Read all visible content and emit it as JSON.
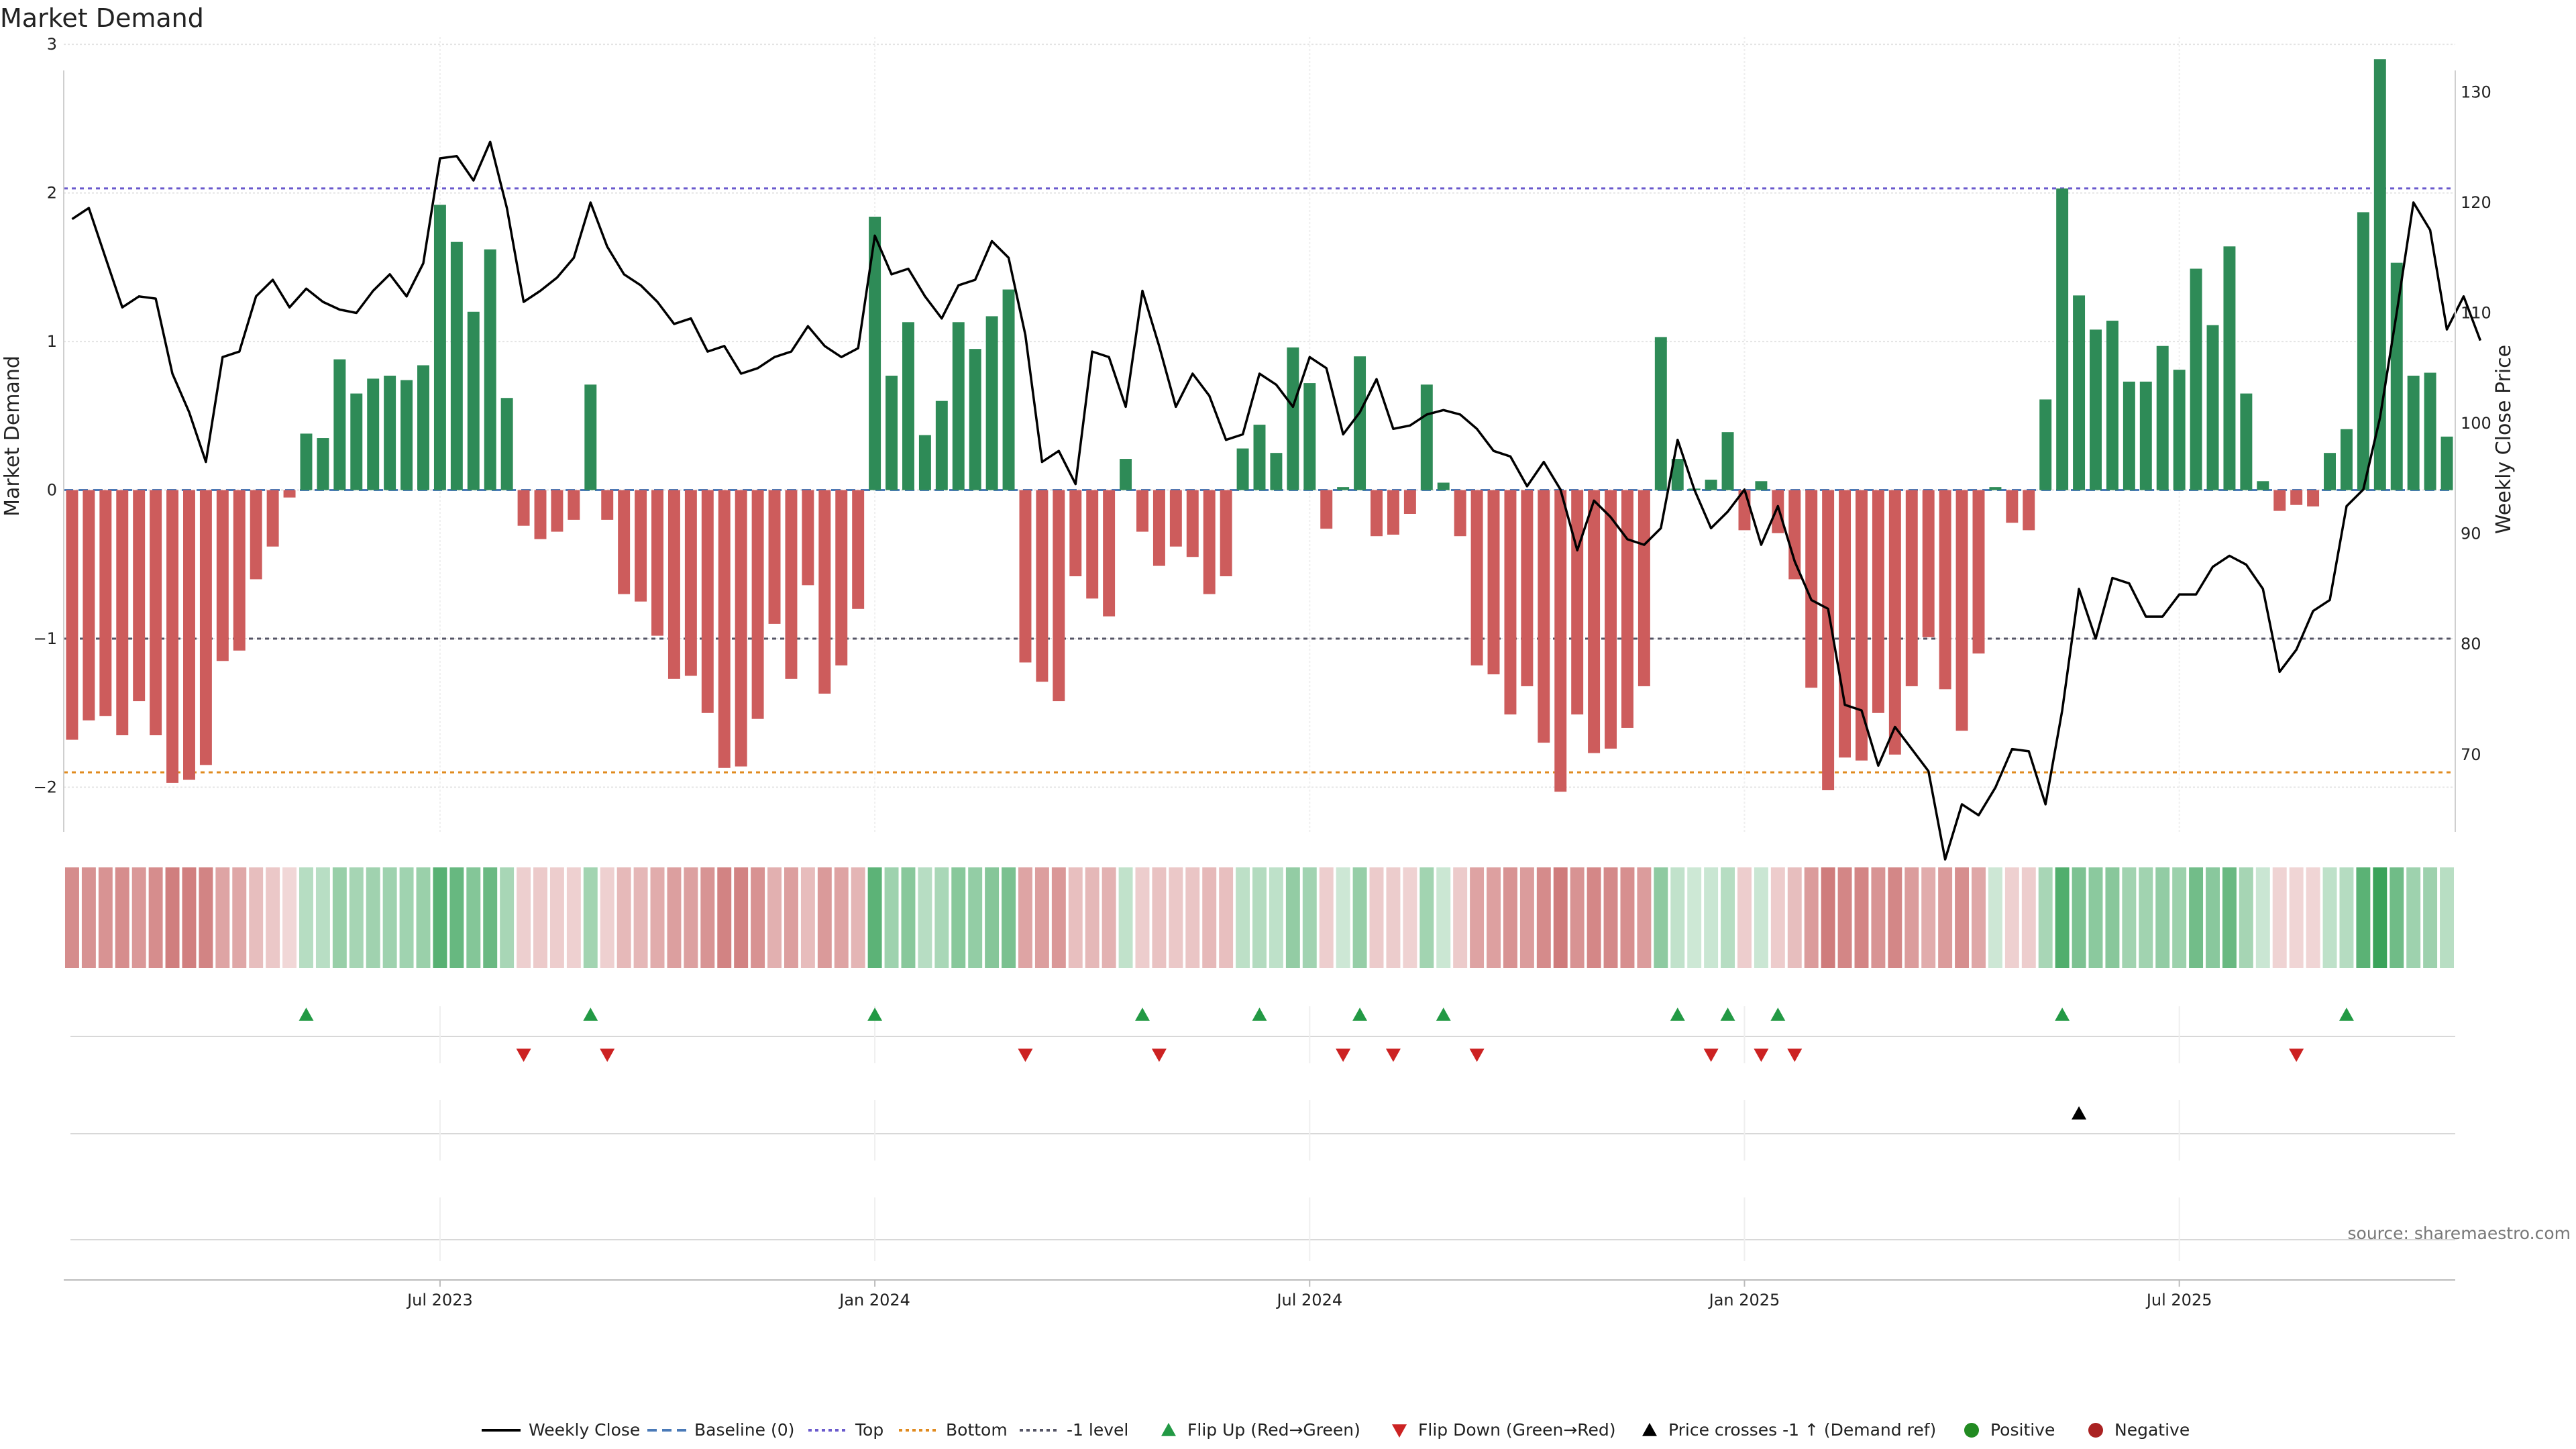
{
  "chart_data": {
    "type": "bar",
    "title": "Market Demand",
    "ylabel": "Market Demand",
    "y2label": "Weekly Close Price",
    "source": "source: sharemaestro.com",
    "ylim": [
      -2.3,
      3.05
    ],
    "y2lim": [
      63.0,
      135.0
    ],
    "y_ticks": [
      -2,
      -1,
      0,
      1,
      2,
      3
    ],
    "y_tick_labels": [
      "−2",
      "−1",
      "0",
      "1",
      "2",
      "3"
    ],
    "y2_ticks": [
      70,
      80,
      90,
      100,
      110,
      120,
      130
    ],
    "y2_tick_labels": [
      "70",
      "80",
      "90",
      "100",
      "110",
      "120",
      "130"
    ],
    "x_ticks": [
      22,
      48,
      74,
      100,
      126
    ],
    "x_tick_labels": [
      "Jul 2023",
      "Jan 2024",
      "Jul 2024",
      "Jan 2025",
      "Jul 2025"
    ],
    "reference_lines": {
      "top": 2.03,
      "bottom": -1.9,
      "minus_one": -1.0,
      "baseline": 0
    },
    "colors": {
      "positive": "#2e8b57",
      "negative": "#cd5c5c",
      "close": "#000000",
      "baseline": "#4a7ab8",
      "top": "#6a5acd",
      "bottom": "#e08a1e",
      "minus_one": "#555566",
      "flip_up": "#229944",
      "flip_down": "#cc2222",
      "cross": "#000000",
      "legend_positive": "#228b22",
      "legend_negative": "#aa2222"
    },
    "series": [
      {
        "name": "Market Demand",
        "values": [
          -1.68,
          -1.55,
          -1.52,
          -1.65,
          -1.42,
          -1.65,
          -1.97,
          -1.95,
          -1.85,
          -1.15,
          -1.08,
          -0.6,
          -0.38,
          -0.05,
          0.38,
          0.35,
          0.88,
          0.65,
          0.75,
          0.77,
          0.74,
          0.84,
          1.92,
          1.67,
          1.2,
          1.62,
          0.62,
          -0.24,
          -0.33,
          -0.28,
          -0.2,
          0.71,
          -0.2,
          -0.7,
          -0.75,
          -0.98,
          -1.27,
          -1.25,
          -1.5,
          -1.87,
          -1.86,
          -1.54,
          -0.9,
          -1.27,
          -0.64,
          -1.37,
          -1.18,
          -0.8,
          1.84,
          0.77,
          1.13,
          0.37,
          0.6,
          1.13,
          0.95,
          1.17,
          1.35,
          -1.16,
          -1.29,
          -1.42,
          -0.58,
          -0.73,
          -0.85,
          0.21,
          -0.28,
          -0.51,
          -0.38,
          -0.45,
          -0.7,
          -0.58,
          0.28,
          0.44,
          0.25,
          0.96,
          0.72,
          -0.26,
          0.02,
          0.9,
          -0.31,
          -0.3,
          -0.16,
          0.71,
          0.05,
          -0.31,
          -1.18,
          -1.24,
          -1.51,
          -1.32,
          -1.7,
          -2.03,
          -1.51,
          -1.77,
          -1.74,
          -1.6,
          -1.32,
          1.03,
          0.21,
          0.01,
          0.07,
          0.39,
          -0.27,
          0.06,
          -0.29,
          -0.6,
          -1.33,
          -2.02,
          -1.8,
          -1.82,
          -1.5,
          -1.78,
          -1.32,
          -0.99,
          -1.34,
          -1.62,
          -1.1,
          0.02,
          -0.22,
          -0.27,
          0.61,
          2.03,
          1.31,
          1.08,
          1.14,
          0.73,
          0.73,
          0.97,
          0.81,
          1.49,
          1.11,
          1.64,
          0.65,
          0.06,
          -0.14,
          -0.1,
          -0.11,
          0.25,
          0.41,
          1.87,
          2.9,
          1.53,
          0.77,
          0.79,
          0.36
        ]
      },
      {
        "name": "Weekly Close",
        "values": [
          118.5,
          119.5,
          115.0,
          110.5,
          111.5,
          111.3,
          104.5,
          101.0,
          96.5,
          106.0,
          106.5,
          111.5,
          113.0,
          110.5,
          112.2,
          111.0,
          110.3,
          110.0,
          112.0,
          113.5,
          111.5,
          114.5,
          124.0,
          124.2,
          122.0,
          125.5,
          119.5,
          111.0,
          112.0,
          113.2,
          115.0,
          120.0,
          116.0,
          113.5,
          112.5,
          111.0,
          109.0,
          109.5,
          106.5,
          107.0,
          104.5,
          105.0,
          106.0,
          106.5,
          108.8,
          107.0,
          106.0,
          106.8,
          117.0,
          113.5,
          114.0,
          111.5,
          109.5,
          112.5,
          113.0,
          116.5,
          115.0,
          108.0,
          96.5,
          97.5,
          94.5,
          106.5,
          106.0,
          101.5,
          112.0,
          107.0,
          101.5,
          104.5,
          102.5,
          98.5,
          99.0,
          104.5,
          103.5,
          101.5,
          106.0,
          105.0,
          99.0,
          101.0,
          104.0,
          99.5,
          99.8,
          100.8,
          101.2,
          100.8,
          99.5,
          97.5,
          97.0,
          94.3,
          96.5,
          94.0,
          88.5,
          93.0,
          91.5,
          89.5,
          89.0,
          90.5,
          98.5,
          94.0,
          90.5,
          92.0,
          94.0,
          89.0,
          92.5,
          87.5,
          84.0,
          83.2,
          74.5,
          74.0,
          69.0,
          72.5,
          70.5,
          68.5,
          60.5,
          65.5,
          64.5,
          67.0,
          70.5,
          70.3,
          65.5,
          74.0,
          85.0,
          80.5,
          86.0,
          85.5,
          82.5,
          82.5,
          84.5,
          84.5,
          87.0,
          88.0,
          87.2,
          85.0,
          77.5,
          79.5,
          83.0,
          84.0,
          92.5,
          94.0,
          100.5,
          110.0,
          120.0,
          117.5,
          108.5,
          111.5,
          107.5
        ]
      }
    ],
    "strip": {
      "name": "Demand Strip",
      "values": [
        -1.68,
        -1.55,
        -1.52,
        -1.65,
        -1.42,
        -1.65,
        -1.97,
        -1.95,
        -1.85,
        -1.15,
        -1.08,
        -0.6,
        -0.38,
        -0.05,
        0.38,
        0.35,
        0.88,
        0.65,
        0.75,
        0.77,
        0.74,
        0.84,
        1.92,
        1.67,
        1.2,
        1.62,
        0.62,
        -0.24,
        -0.33,
        -0.28,
        -0.2,
        0.71,
        -0.2,
        -0.7,
        -0.75,
        -0.98,
        -1.27,
        -1.25,
        -1.5,
        -1.87,
        -1.86,
        -1.54,
        -0.9,
        -1.27,
        -0.64,
        -1.37,
        -1.18,
        -0.8,
        1.84,
        0.77,
        1.13,
        0.37,
        0.6,
        1.13,
        0.95,
        1.17,
        1.35,
        -1.16,
        -1.29,
        -1.42,
        -0.58,
        -0.73,
        -0.85,
        0.21,
        -0.28,
        -0.51,
        -0.38,
        -0.45,
        -0.7,
        -0.58,
        0.28,
        0.44,
        0.25,
        0.96,
        0.72,
        -0.26,
        0.02,
        0.9,
        -0.31,
        -0.3,
        -0.16,
        0.71,
        0.05,
        -0.31,
        -1.18,
        -1.24,
        -1.51,
        -1.32,
        -1.7,
        -2.03,
        -1.51,
        -1.77,
        -1.74,
        -1.6,
        -1.32,
        1.03,
        0.21,
        0.01,
        0.07,
        0.39,
        -0.27,
        0.06,
        -0.29,
        -0.6,
        -1.33,
        -2.02,
        -1.8,
        -1.82,
        -1.5,
        -1.78,
        -1.32,
        -0.99,
        -1.34,
        -1.62,
        -1.1,
        0.02,
        -0.22,
        -0.27,
        0.61,
        2.03,
        1.31,
        1.08,
        1.14,
        0.73,
        0.73,
        0.97,
        0.81,
        1.49,
        1.11,
        1.64,
        0.65,
        0.06,
        -0.14,
        -0.1,
        -0.11,
        0.25,
        0.41,
        1.87,
        2.9,
        1.53,
        0.77,
        0.79,
        0.36
      ]
    },
    "flip_up_weeks": [
      14,
      31,
      48,
      64,
      71,
      77,
      82,
      96,
      99,
      102,
      119,
      136
    ],
    "flip_down_weeks": [
      27,
      32,
      57,
      65,
      76,
      79,
      84,
      98,
      101,
      103,
      133
    ],
    "cross_weeks": [
      120
    ],
    "legend": {
      "position": "bottom",
      "items": [
        {
          "key": "close",
          "label": "Weekly Close"
        },
        {
          "key": "baseline",
          "label": "Baseline (0)"
        },
        {
          "key": "top",
          "label": "Top"
        },
        {
          "key": "bottom",
          "label": "Bottom"
        },
        {
          "key": "minus_one",
          "label": "-1 level"
        },
        {
          "key": "flip_up",
          "label": "Flip Up (Red→Green)"
        },
        {
          "key": "flip_down",
          "label": "Flip Down (Green→Red)"
        },
        {
          "key": "cross",
          "label": "Price crosses -1 ↑ (Demand ref)"
        },
        {
          "key": "legend_positive",
          "label": "Positive"
        },
        {
          "key": "legend_negative",
          "label": "Negative"
        }
      ]
    }
  }
}
